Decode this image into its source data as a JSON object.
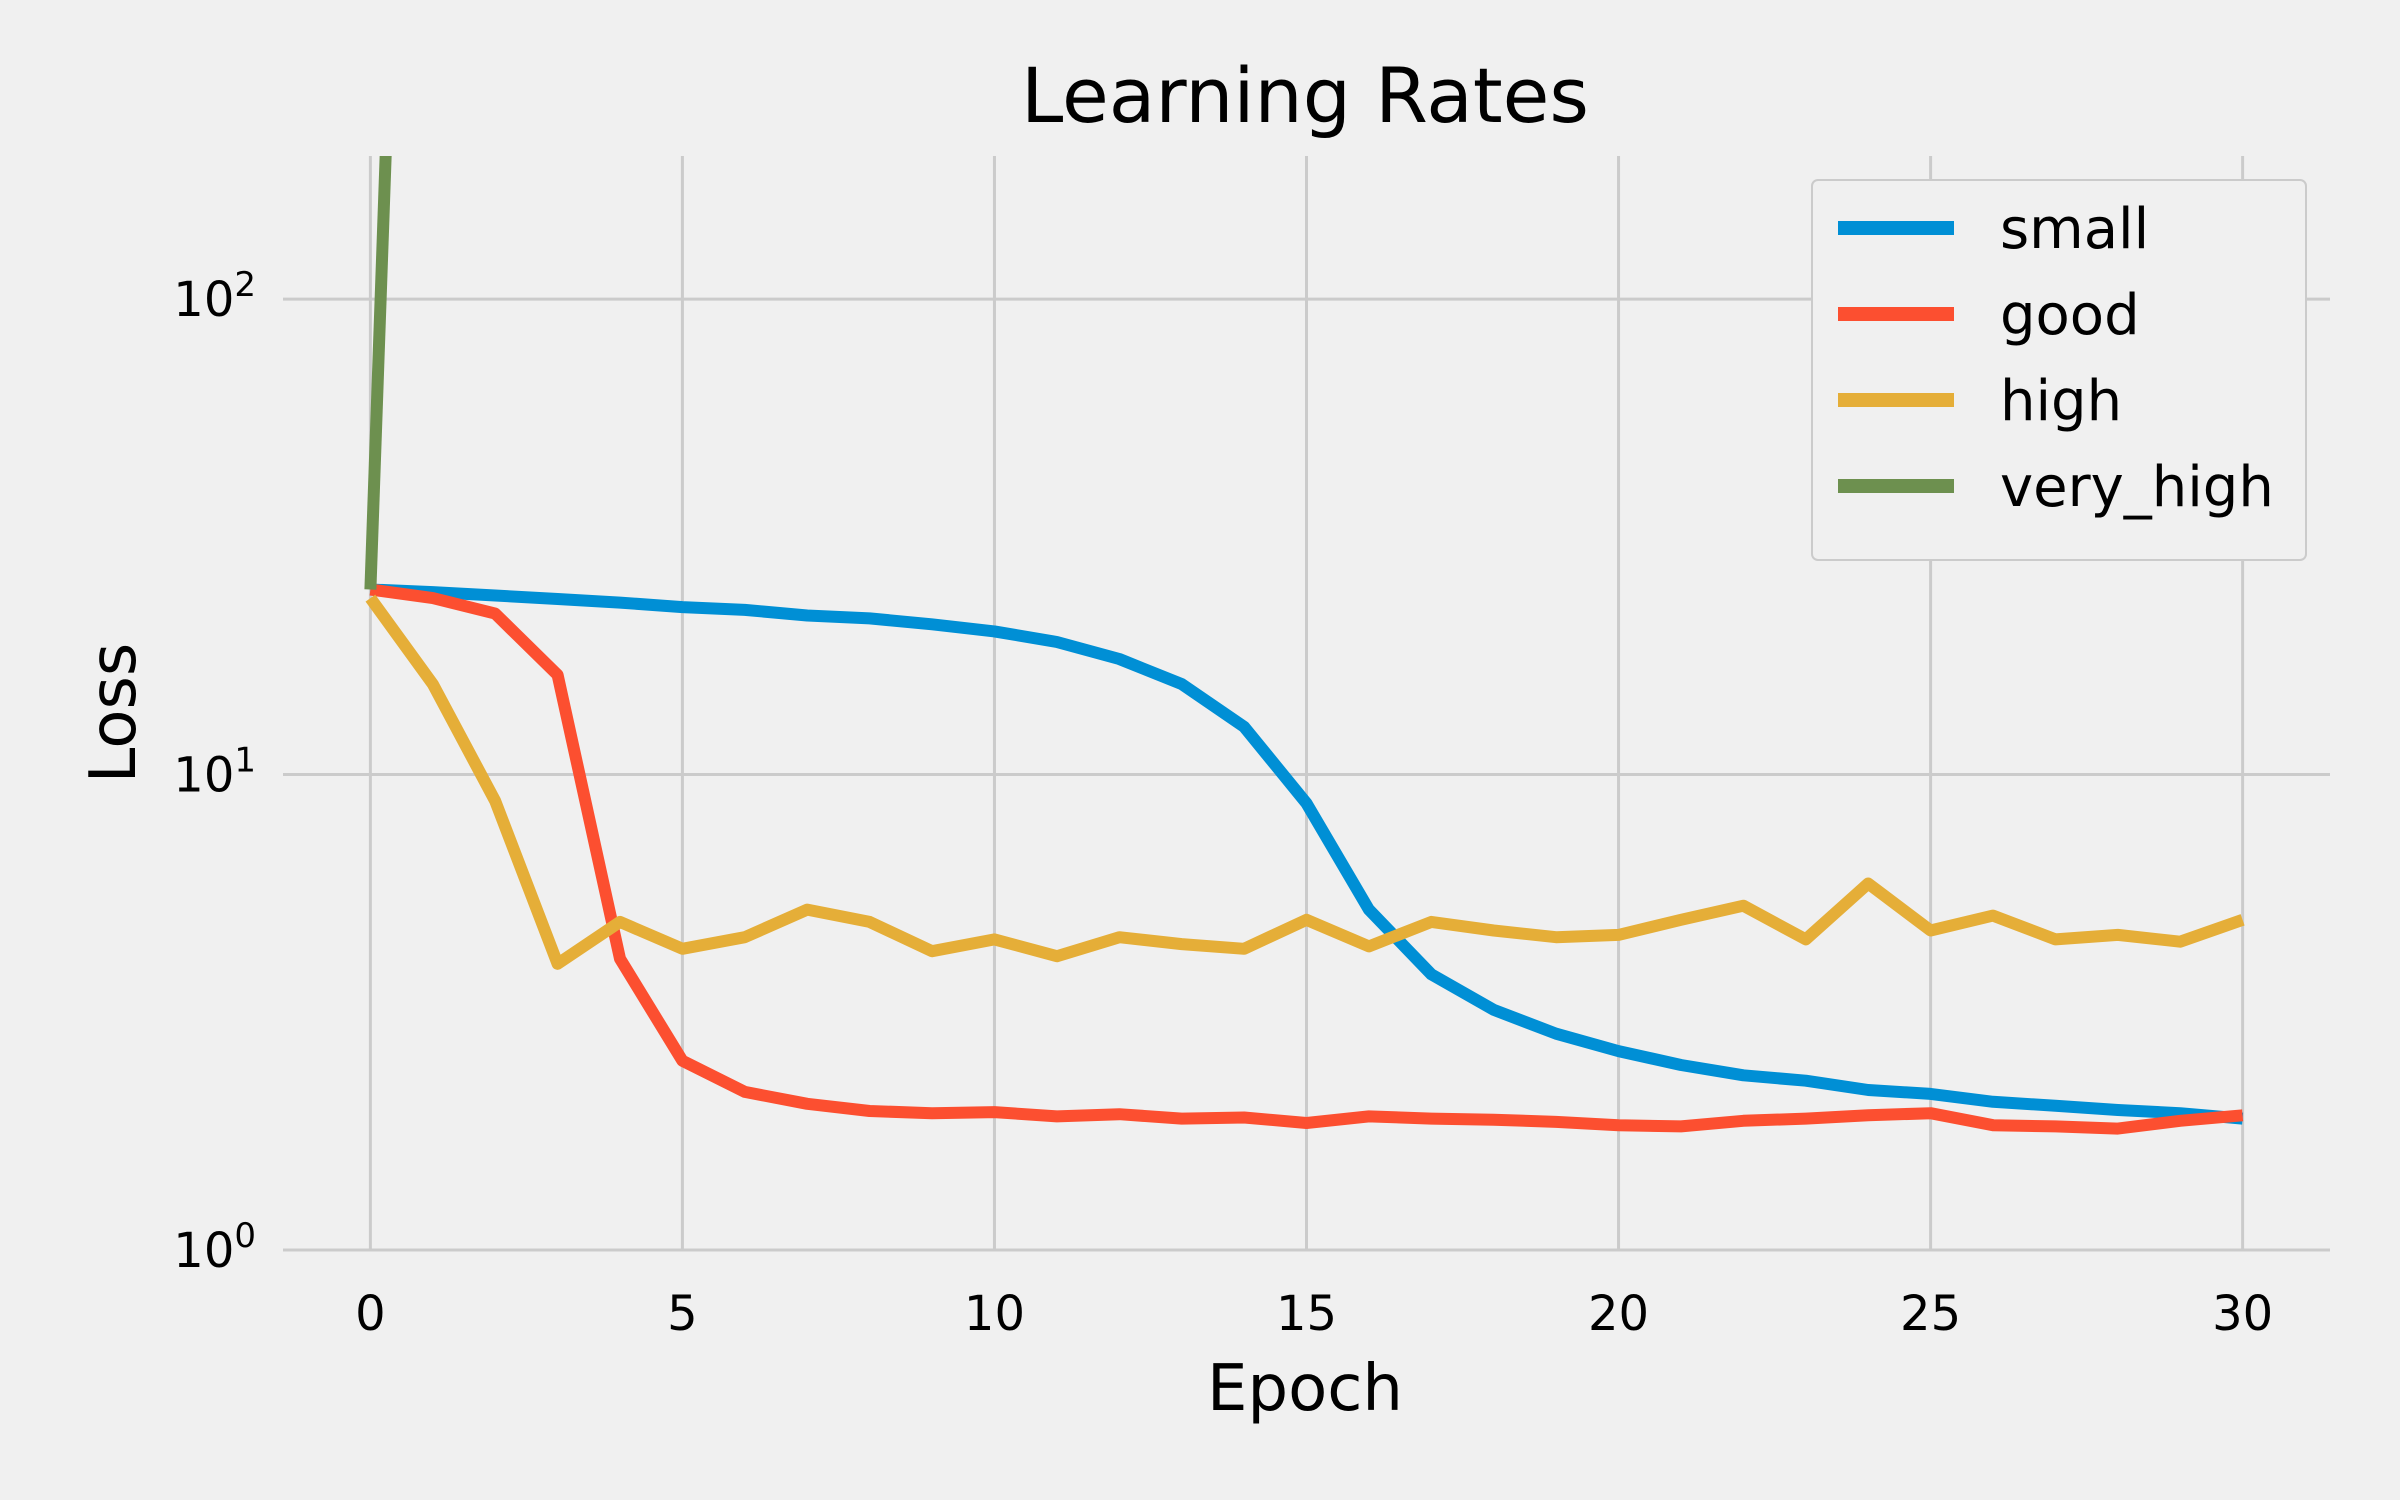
{
  "chart_data": {
    "type": "line",
    "title": "Learning Rates",
    "xlabel": "Epoch",
    "ylabel": "Loss",
    "yscale": "log",
    "xlim": [
      -1.4,
      31.4
    ],
    "ylim": [
      1,
      200
    ],
    "xticks": [
      {
        "value": 0,
        "label": "0"
      },
      {
        "value": 5,
        "label": "5"
      },
      {
        "value": 10,
        "label": "10"
      },
      {
        "value": 15,
        "label": "15"
      },
      {
        "value": 20,
        "label": "20"
      },
      {
        "value": 25,
        "label": "25"
      },
      {
        "value": 30,
        "label": "30"
      }
    ],
    "yticks": [
      {
        "value": 1,
        "base": "10",
        "exp": "0"
      },
      {
        "value": 10,
        "base": "10",
        "exp": "1"
      },
      {
        "value": 100,
        "base": "10",
        "exp": "2"
      }
    ],
    "grid": true,
    "legend_position": "top-right",
    "series": [
      {
        "name": "small",
        "color": "#008fd5",
        "x": [
          0,
          1,
          2,
          3,
          4,
          5,
          6,
          7,
          8,
          9,
          10,
          11,
          12,
          13,
          14,
          15,
          16,
          17,
          18,
          19,
          20,
          21,
          22,
          23,
          24,
          25,
          26,
          27,
          28,
          29,
          30
        ],
        "y": [
          24.5,
          24.2,
          23.8,
          23.4,
          23.0,
          22.5,
          22.2,
          21.6,
          21.3,
          20.7,
          20.0,
          19.0,
          17.5,
          15.5,
          12.6,
          8.7,
          5.2,
          3.8,
          3.2,
          2.85,
          2.62,
          2.45,
          2.33,
          2.27,
          2.17,
          2.13,
          2.05,
          2.01,
          1.97,
          1.94,
          1.89
        ]
      },
      {
        "name": "good",
        "color": "#fc4f30",
        "x": [
          0,
          1,
          2,
          3,
          4,
          5,
          6,
          7,
          8,
          9,
          10,
          11,
          12,
          13,
          14,
          15,
          16,
          17,
          18,
          19,
          20,
          21,
          22,
          23,
          24,
          25,
          26,
          27,
          28,
          29,
          30
        ],
        "y": [
          24.5,
          23.5,
          21.8,
          16.2,
          4.1,
          2.5,
          2.15,
          2.03,
          1.96,
          1.94,
          1.95,
          1.91,
          1.93,
          1.89,
          1.9,
          1.85,
          1.91,
          1.89,
          1.88,
          1.86,
          1.83,
          1.82,
          1.87,
          1.89,
          1.92,
          1.94,
          1.83,
          1.82,
          1.8,
          1.87,
          1.92
        ]
      },
      {
        "name": "high",
        "color": "#e5ae38",
        "x": [
          0,
          1,
          2,
          3,
          4,
          5,
          6,
          7,
          8,
          9,
          10,
          11,
          12,
          13,
          14,
          15,
          16,
          17,
          18,
          19,
          20,
          21,
          22,
          23,
          24,
          25,
          26,
          27,
          28,
          29,
          30
        ],
        "y": [
          23.5,
          15.5,
          8.8,
          4.0,
          4.9,
          4.3,
          4.55,
          5.2,
          4.9,
          4.25,
          4.5,
          4.15,
          4.55,
          4.4,
          4.3,
          4.95,
          4.35,
          4.9,
          4.7,
          4.55,
          4.6,
          4.95,
          5.3,
          4.5,
          5.9,
          4.7,
          5.05,
          4.5,
          4.6,
          4.45,
          4.95
        ]
      },
      {
        "name": "very_high",
        "color": "#6d904f",
        "x": [
          0,
          0.25
        ],
        "y": [
          24.5,
          210
        ]
      }
    ]
  }
}
